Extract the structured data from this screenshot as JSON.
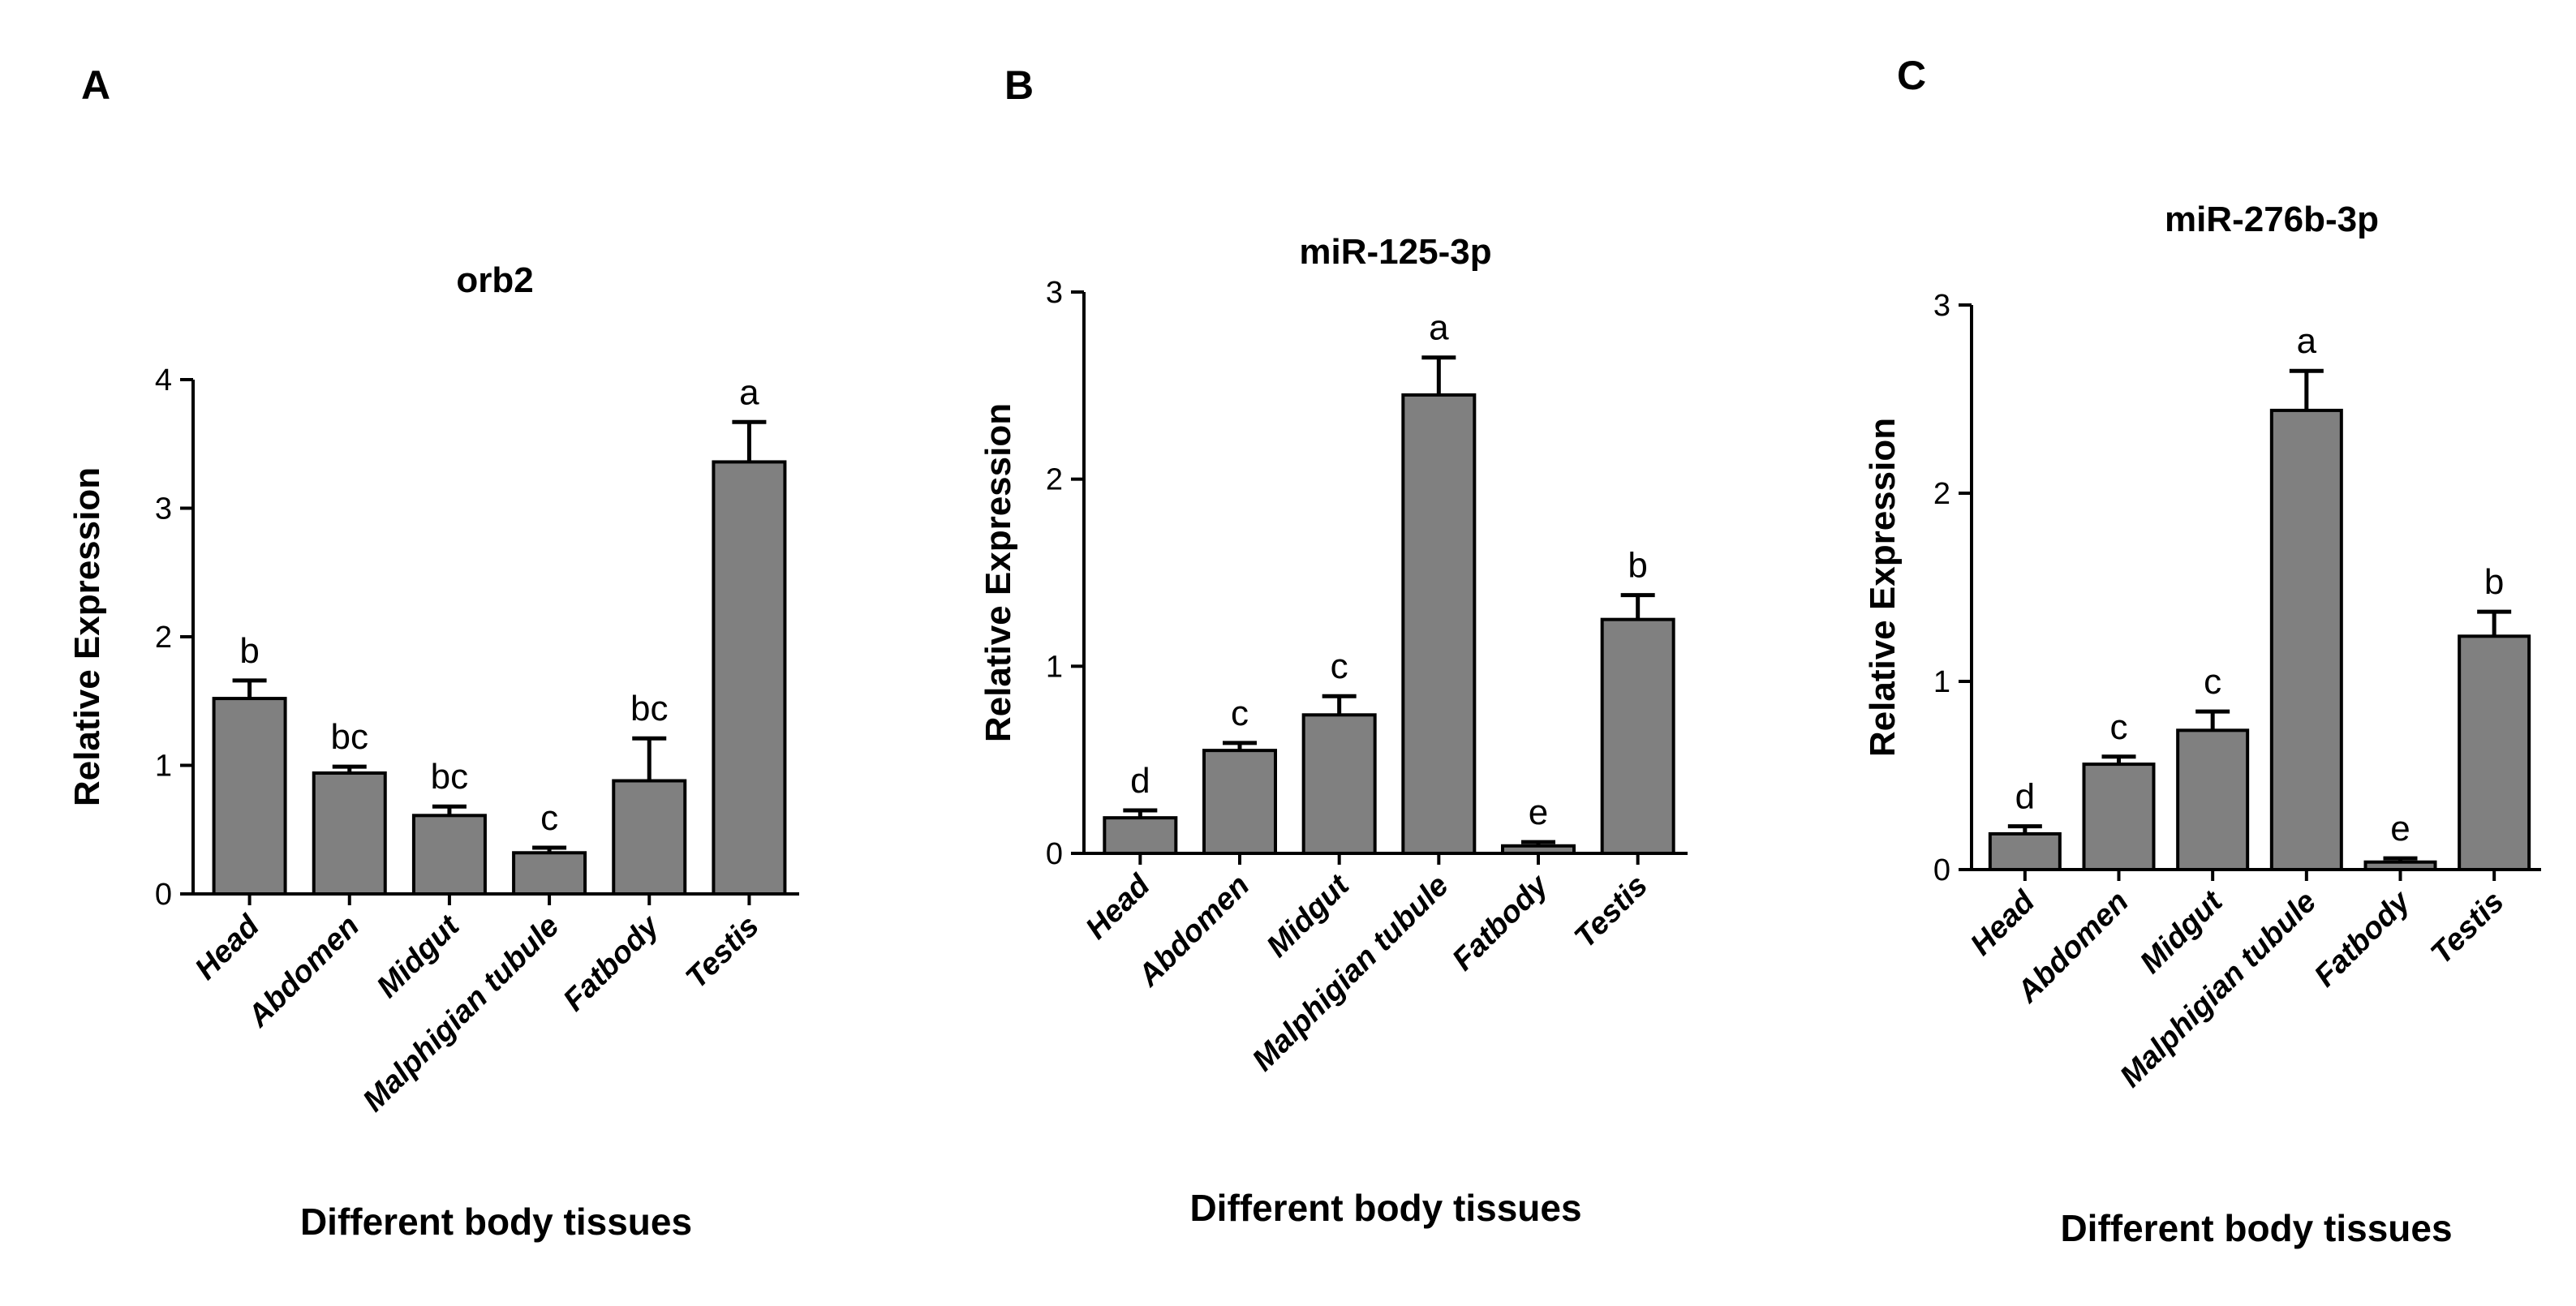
{
  "chart_data": [
    {
      "type": "bar",
      "panel": "A",
      "title": "orb2",
      "xlabel": "Different body tissues",
      "ylabel": "Relative Expression",
      "ylim": [
        0,
        4
      ],
      "yticks": [
        "0",
        "1",
        "2",
        "3",
        "4"
      ],
      "categories": [
        "Head",
        "Abdomen",
        "Midgut",
        "Malphigian tubule",
        "Fatbody",
        "Testis"
      ],
      "values": [
        1.52,
        0.94,
        0.61,
        0.32,
        0.88,
        3.36
      ],
      "errors": [
        0.14,
        0.05,
        0.07,
        0.04,
        0.33,
        0.31
      ],
      "significance": [
        "b",
        "bc",
        "bc",
        "c",
        "bc",
        "a"
      ],
      "bar_color": "#808080"
    },
    {
      "type": "bar",
      "panel": "B",
      "title": "miR-125-3p",
      "xlabel": "Different body tissues",
      "ylabel": "Relative Expression",
      "ylim": [
        0,
        3
      ],
      "yticks": [
        "0",
        "1",
        "2",
        "3"
      ],
      "categories": [
        "Head",
        "Abdomen",
        "Midgut",
        "Malphigian tubule",
        "Fatbody",
        "Testis"
      ],
      "values": [
        0.19,
        0.55,
        0.74,
        2.45,
        0.04,
        1.25
      ],
      "errors": [
        0.04,
        0.04,
        0.1,
        0.2,
        0.02,
        0.13
      ],
      "significance": [
        "d",
        "c",
        "c",
        "a",
        "e",
        "b"
      ],
      "bar_color": "#808080"
    },
    {
      "type": "bar",
      "panel": "C",
      "title": "miR-276b-3p",
      "xlabel": "Different body tissues",
      "ylabel": "Relative Expression",
      "ylim": [
        0,
        3
      ],
      "yticks": [
        "0",
        "1",
        "2",
        "3"
      ],
      "categories": [
        "Head",
        "Abdomen",
        "Midgut",
        "Malphigian tubule",
        "Fatbody",
        "Testis"
      ],
      "values": [
        0.19,
        0.56,
        0.74,
        2.44,
        0.04,
        1.24
      ],
      "errors": [
        0.04,
        0.04,
        0.1,
        0.21,
        0.02,
        0.13
      ],
      "significance": [
        "d",
        "c",
        "c",
        "a",
        "e",
        "b"
      ],
      "bar_color": "#808080"
    }
  ]
}
